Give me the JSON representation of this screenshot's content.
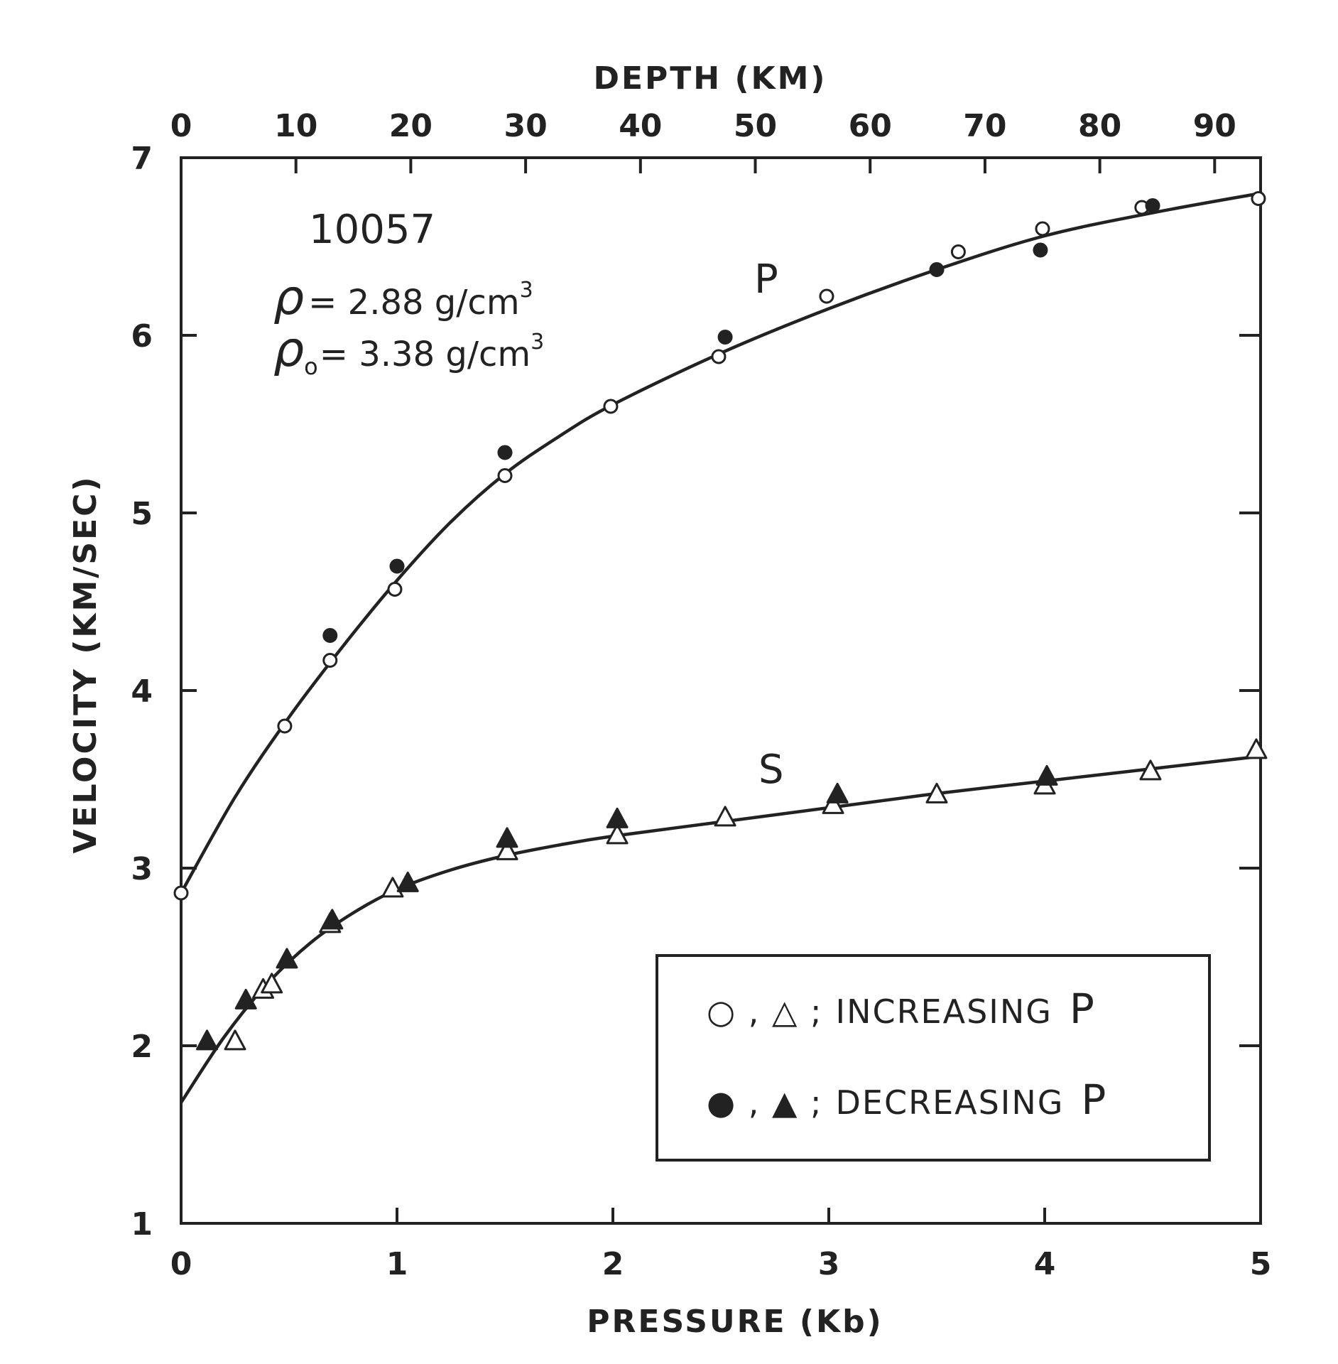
{
  "chart_data": {
    "type": "scatter",
    "xlabel": "PRESSURE (Kb)",
    "x2label": "DEPTH (KM)",
    "ylabel": "VELOCITY (KM/SEC)",
    "xlim": [
      0,
      5
    ],
    "ylim": [
      1,
      7
    ],
    "x2lim": [
      0,
      94
    ],
    "x_ticks": [
      0,
      1,
      2,
      3,
      4,
      5
    ],
    "y_ticks": [
      1,
      2,
      3,
      4,
      5,
      6,
      7
    ],
    "x2_ticks": [
      0,
      10,
      20,
      30,
      40,
      50,
      60,
      70,
      80,
      90
    ],
    "grid": false,
    "legend_position": "bottom-right",
    "annotation": {
      "sample": "10057",
      "rho_sym": "ρ",
      "rho_val": "= 2.88 g/cm",
      "rho0_sym": "ρ",
      "rho0_sub": "o",
      "rho0_val": "= 3.38 g/cm",
      "exp": "3"
    },
    "curve_labels": {
      "p": "P",
      "s": "S"
    },
    "legend": {
      "increasing_symbols": "○ , △ ;",
      "increasing_text": "INCREASING",
      "decreasing_symbols": "● , ▲ ;",
      "decreasing_text": "DECREASING",
      "p_letter": "P"
    },
    "series": [
      {
        "name": "P increasing",
        "marker": "open-circle",
        "points": [
          [
            0,
            2.86
          ],
          [
            0.48,
            3.8
          ],
          [
            0.69,
            4.17
          ],
          [
            0.99,
            4.57
          ],
          [
            1.5,
            5.21
          ],
          [
            1.99,
            5.6
          ],
          [
            2.49,
            5.88
          ],
          [
            2.99,
            6.22
          ],
          [
            3.6,
            6.47
          ],
          [
            3.99,
            6.6
          ],
          [
            4.45,
            6.72
          ],
          [
            4.99,
            6.77
          ]
        ]
      },
      {
        "name": "P decreasing",
        "marker": "filled-circle",
        "points": [
          [
            0.69,
            4.31
          ],
          [
            1.0,
            4.7
          ],
          [
            1.5,
            5.34
          ],
          [
            2.52,
            5.99
          ],
          [
            3.5,
            6.37
          ],
          [
            3.98,
            6.48
          ],
          [
            4.5,
            6.73
          ]
        ]
      },
      {
        "name": "S increasing",
        "marker": "open-triangle",
        "points": [
          [
            0.25,
            2.02
          ],
          [
            0.38,
            2.31
          ],
          [
            0.42,
            2.34
          ],
          [
            0.69,
            2.68
          ],
          [
            0.98,
            2.88
          ],
          [
            1.51,
            3.09
          ],
          [
            2.02,
            3.18
          ],
          [
            2.52,
            3.28
          ],
          [
            3.02,
            3.35
          ],
          [
            3.5,
            3.41
          ],
          [
            4.0,
            3.46
          ],
          [
            4.49,
            3.54
          ],
          [
            4.98,
            3.66
          ]
        ]
      },
      {
        "name": "S decreasing",
        "marker": "filled-triangle",
        "points": [
          [
            0.12,
            2.02
          ],
          [
            0.3,
            2.25
          ],
          [
            0.49,
            2.48
          ],
          [
            0.7,
            2.7
          ],
          [
            1.05,
            2.91
          ],
          [
            1.51,
            3.16
          ],
          [
            2.02,
            3.27
          ],
          [
            3.04,
            3.41
          ],
          [
            4.01,
            3.51
          ]
        ]
      },
      {
        "name": "P fit",
        "marker": "line",
        "points": [
          [
            0,
            2.86
          ],
          [
            0.25,
            3.4
          ],
          [
            0.5,
            3.85
          ],
          [
            0.75,
            4.25
          ],
          [
            1.0,
            4.62
          ],
          [
            1.25,
            4.95
          ],
          [
            1.5,
            5.22
          ],
          [
            1.75,
            5.43
          ],
          [
            2.0,
            5.61
          ],
          [
            2.5,
            5.9
          ],
          [
            3.0,
            6.15
          ],
          [
            3.5,
            6.37
          ],
          [
            4.0,
            6.56
          ],
          [
            4.5,
            6.69
          ],
          [
            5.0,
            6.8
          ]
        ]
      },
      {
        "name": "S fit",
        "marker": "line",
        "points": [
          [
            0,
            1.68
          ],
          [
            0.2,
            2.05
          ],
          [
            0.4,
            2.35
          ],
          [
            0.6,
            2.58
          ],
          [
            0.8,
            2.75
          ],
          [
            1.0,
            2.88
          ],
          [
            1.25,
            2.99
          ],
          [
            1.5,
            3.07
          ],
          [
            1.75,
            3.13
          ],
          [
            2.0,
            3.18
          ],
          [
            2.5,
            3.26
          ],
          [
            3.0,
            3.34
          ],
          [
            3.5,
            3.42
          ],
          [
            4.0,
            3.49
          ],
          [
            4.5,
            3.56
          ],
          [
            5.0,
            3.63
          ]
        ]
      }
    ]
  }
}
